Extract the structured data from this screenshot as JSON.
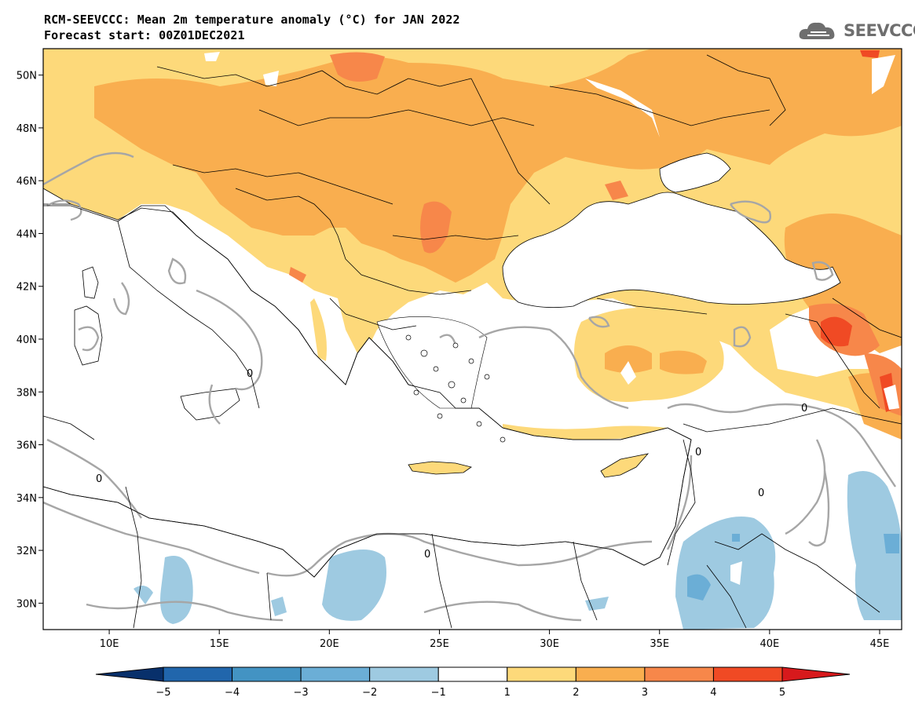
{
  "title": {
    "line1": "RCM-SEEVCCC: Mean 2m temperature anomaly (°C) for JAN 2022",
    "line2": "Forecast start: 00Z01DEC2021"
  },
  "logo": {
    "text": "SEEVCCC",
    "icon": "cloud-icon"
  },
  "map": {
    "lon_range": [
      7,
      46
    ],
    "lat_range": [
      29,
      51
    ],
    "lat_ticks": [
      "50N",
      "48N",
      "46N",
      "44N",
      "42N",
      "40N",
      "38N",
      "36N",
      "34N",
      "32N",
      "30N"
    ],
    "lat_values": [
      50,
      48,
      46,
      44,
      42,
      40,
      38,
      36,
      34,
      32,
      30
    ],
    "lon_ticks": [
      "10E",
      "15E",
      "20E",
      "25E",
      "30E",
      "35E",
      "40E",
      "45E"
    ],
    "lon_values": [
      10,
      15,
      20,
      25,
      30,
      35,
      40,
      45
    ],
    "contour_label": "0"
  },
  "colorbar": {
    "labels": [
      "−5",
      "−4",
      "−3",
      "−2",
      "−1",
      "1",
      "2",
      "3",
      "4",
      "5"
    ],
    "colors": [
      "#08306b",
      "#2166ac",
      "#4393c3",
      "#6baed6",
      "#9ecae1",
      "#ffffff",
      "#fdd97a",
      "#f9ae4f",
      "#f7874a",
      "#f04a24",
      "#d7191c"
    ]
  },
  "colors": {
    "warm1": "#fdd97a",
    "warm2": "#f9ae4f",
    "warm3": "#f7874a",
    "warm4": "#f04a24",
    "cool1": "#9ecae1",
    "cool2": "#6baed6",
    "zero_contour": "#a6a6a6",
    "border": "#000000"
  }
}
